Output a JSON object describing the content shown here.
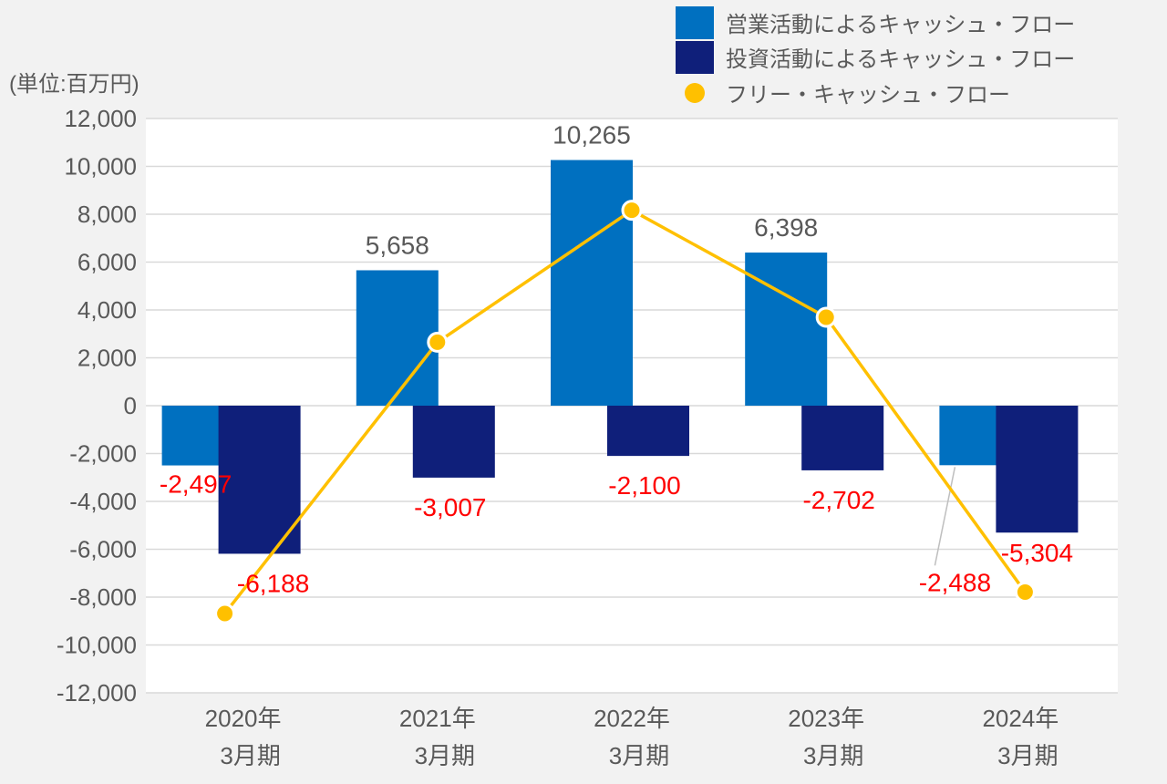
{
  "chart_data": {
    "type": "bar",
    "unit_label": "(単位:百万円)",
    "categories": [
      [
        "2020年",
        "3月期"
      ],
      [
        "2021年",
        "3月期"
      ],
      [
        "2022年",
        "3月期"
      ],
      [
        "2023年",
        "3月期"
      ],
      [
        "2024年",
        "3月期"
      ]
    ],
    "ylim": [
      -12000,
      12000
    ],
    "yticks": [
      12000,
      10000,
      8000,
      6000,
      4000,
      2000,
      0,
      -2000,
      -4000,
      -6000,
      -8000,
      -10000,
      -12000
    ],
    "ytick_labels": [
      "12,000",
      "10,000",
      "8,000",
      "6,000",
      "4,000",
      "2,000",
      "0",
      "-2,000",
      "-4,000",
      "-6,000",
      "-8,000",
      "-10,000",
      "-12,000"
    ],
    "grid": true,
    "legend_position": "top-right",
    "series": [
      {
        "name": "営業活動によるキャッシュ・フロー",
        "kind": "bar",
        "color": "#0070c0",
        "values": [
          -2497,
          5658,
          10265,
          6398,
          -2488
        ],
        "labels": [
          "-2,497",
          "5,658",
          "10,265",
          "6,398",
          "-2,488"
        ]
      },
      {
        "name": "投資活動によるキャッシュ・フロー",
        "kind": "bar",
        "color": "#0f1f7a",
        "values": [
          -6188,
          -3007,
          -2100,
          -2702,
          -5304
        ],
        "labels": [
          "-6,188",
          "-3,007",
          "-2,100",
          "-2,702",
          "-5,304"
        ]
      },
      {
        "name": "フリー・キャッシュ・フロー",
        "kind": "line",
        "color": "#ffc000",
        "values": [
          -8685,
          2651,
          8165,
          3696,
          -7792
        ]
      }
    ],
    "label_colors": {
      "positive": "#595959",
      "negative": "#ff0000"
    },
    "axis_label_color": "#595959"
  }
}
